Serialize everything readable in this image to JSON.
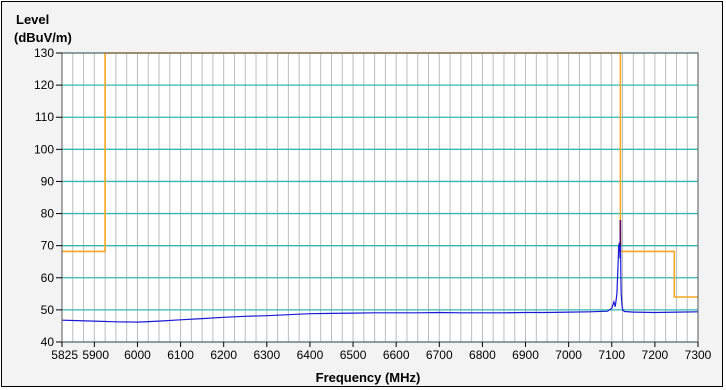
{
  "chart_data": {
    "type": "line",
    "ylabel_line1": "Level",
    "ylabel_line2": "(dBuV/m)",
    "xlabel": "Frequency (MHz)",
    "xlim": [
      5825,
      7300
    ],
    "ylim": [
      40,
      130
    ],
    "x_ticks": [
      5825,
      5900,
      6000,
      6100,
      6200,
      6300,
      6400,
      6500,
      6600,
      6700,
      6800,
      6900,
      7000,
      7100,
      7200,
      7300
    ],
    "x_tick_labels": [
      "5825",
      "5900",
      "6000",
      "6100",
      "6200",
      "6300",
      "6400",
      "6500",
      "6600",
      "6700",
      "6800",
      "6900",
      "7000",
      "7100",
      "7200",
      "7300"
    ],
    "y_ticks": [
      40,
      50,
      60,
      70,
      80,
      90,
      100,
      110,
      120,
      130
    ],
    "y_tick_labels": [
      "40",
      "50",
      "60",
      "70",
      "80",
      "90",
      "100",
      "110",
      "120",
      "130"
    ],
    "grid": true,
    "minor_x_step": 25,
    "colors": {
      "plot_bg": "#ffffff",
      "frame_bg": "#f3f3f3",
      "h_grid": "#33b8b0",
      "v_grid": "#bcbcbc",
      "limit_line": "#f5a623",
      "trace": "#1a1ad6",
      "peak": "#5a0a5a"
    },
    "series": [
      {
        "key": "limit",
        "x": [
          5825,
          5925,
          5925,
          7120,
          7120,
          7245,
          7245,
          7300
        ],
        "y": [
          68.2,
          68.2,
          130,
          130,
          68.2,
          68.2,
          54,
          54
        ]
      },
      {
        "key": "trace",
        "x": [
          5825,
          5850,
          5900,
          5950,
          6000,
          6050,
          6100,
          6150,
          6200,
          6250,
          6300,
          6350,
          6400,
          6450,
          6500,
          6550,
          6600,
          6650,
          6700,
          6750,
          6800,
          6850,
          6900,
          6950,
          7000,
          7050,
          7090,
          7100,
          7105,
          7108,
          7110,
          7112,
          7114,
          7116,
          7118,
          7119,
          7120,
          7121,
          7122,
          7124,
          7126,
          7130,
          7150,
          7200,
          7250,
          7300
        ],
        "y": [
          46.8,
          46.7,
          46.5,
          46.3,
          46.2,
          46.5,
          46.9,
          47.3,
          47.7,
          48.0,
          48.2,
          48.5,
          48.8,
          48.9,
          49.0,
          49.1,
          49.1,
          49.1,
          49.2,
          49.1,
          49.1,
          49.1,
          49.2,
          49.2,
          49.3,
          49.4,
          49.6,
          50.5,
          52.5,
          51.0,
          53.0,
          55.0,
          62.0,
          70.0,
          71.0,
          66.0,
          78.0,
          62.0,
          55.0,
          51.0,
          49.8,
          49.5,
          49.3,
          49.2,
          49.3,
          49.4
        ]
      }
    ]
  }
}
